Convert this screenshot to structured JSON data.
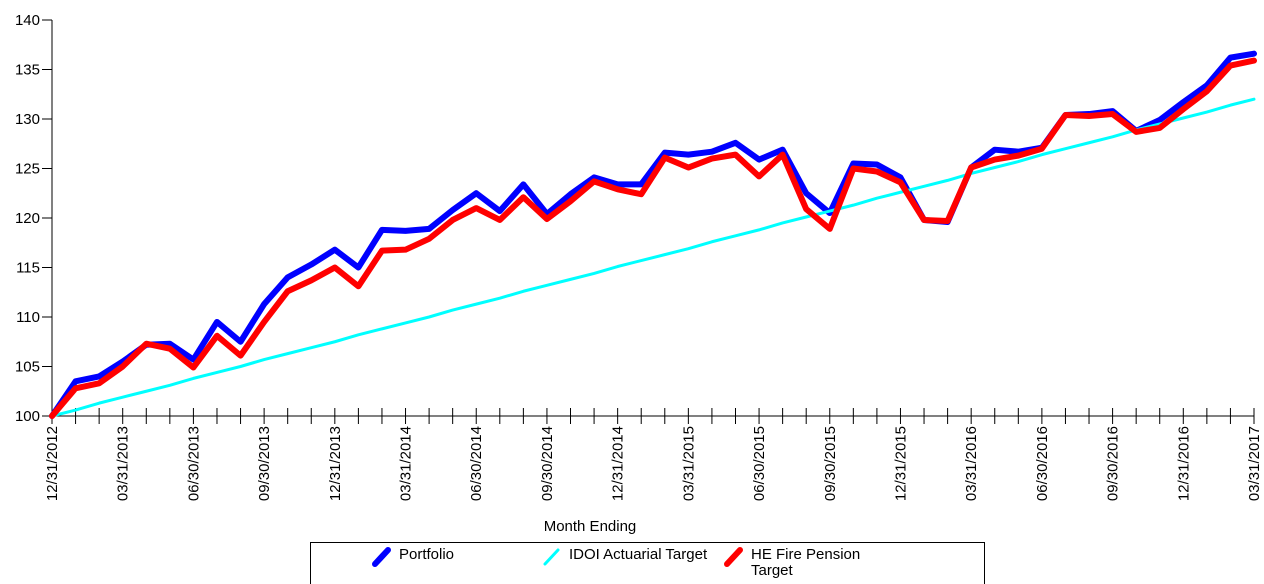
{
  "chart_data": {
    "type": "line",
    "x_label": "Month Ending",
    "categories": [
      "12/31/2012",
      null,
      null,
      "03/31/2013",
      null,
      null,
      "06/30/2013",
      null,
      null,
      "09/30/2013",
      null,
      null,
      "12/31/2013",
      null,
      null,
      "03/31/2014",
      null,
      null,
      "06/30/2014",
      null,
      null,
      "09/30/2014",
      null,
      null,
      "12/31/2014",
      null,
      null,
      "03/31/2015",
      null,
      null,
      "06/30/2015",
      null,
      null,
      "09/30/2015",
      null,
      null,
      "12/31/2015",
      null,
      null,
      "03/31/2016",
      null,
      null,
      "06/30/2016",
      null,
      null,
      "09/30/2016",
      null,
      null,
      "12/31/2016",
      null,
      null,
      "03/31/2017"
    ],
    "series": [
      {
        "name": "Portfolio",
        "color": "#0000ff",
        "values": [
          100,
          103.5,
          104,
          105.5,
          107.2,
          107.3,
          105.7,
          109.5,
          107.5,
          111.3,
          114,
          115.3,
          116.8,
          115,
          118.8,
          118.7,
          118.9,
          120.8,
          122.5,
          120.7,
          123.4,
          120.4,
          122.4,
          124.1,
          123.4,
          123.4,
          126.6,
          126.4,
          126.7,
          127.6,
          125.9,
          126.9,
          122.5,
          120.5,
          125.5,
          125.4,
          124.1,
          119.8,
          119.6,
          125.1,
          126.9,
          126.7,
          127.1,
          130.4,
          130.5,
          130.8,
          128.8,
          129.9,
          131.7,
          133.4,
          136.2,
          136.6
        ]
      },
      {
        "name": "IDOI Actuarial Target",
        "color": "#00ffff",
        "values": [
          100,
          100.6,
          101.3,
          101.9,
          102.5,
          103.1,
          103.8,
          104.4,
          105,
          105.7,
          106.3,
          106.9,
          107.5,
          108.2,
          108.8,
          109.4,
          110,
          110.7,
          111.3,
          111.9,
          112.6,
          113.2,
          113.8,
          114.4,
          115.1,
          115.7,
          116.3,
          116.9,
          117.6,
          118.2,
          118.8,
          119.5,
          120.1,
          120.7,
          121.3,
          122,
          122.6,
          123.2,
          123.8,
          124.5,
          125.1,
          125.7,
          126.4,
          127,
          127.6,
          128.2,
          128.9,
          129.5,
          130.1,
          130.7,
          131.4,
          132
        ]
      },
      {
        "name": "HE Fire Pension Target",
        "color": "#ff0000",
        "values": [
          100,
          102.8,
          103.3,
          105,
          107.3,
          106.8,
          104.9,
          108.1,
          106.1,
          109.5,
          112.6,
          113.7,
          115,
          113.1,
          116.7,
          116.8,
          117.9,
          119.8,
          121,
          119.8,
          122.1,
          119.9,
          121.7,
          123.7,
          122.9,
          122.4,
          126.1,
          125.1,
          126,
          126.4,
          124.2,
          126.4,
          120.9,
          118.9,
          125,
          124.7,
          123.6,
          119.8,
          119.7,
          125.1,
          125.9,
          126.3,
          127,
          130.4,
          130.3,
          130.5,
          128.7,
          129.1,
          131,
          132.8,
          135.4,
          135.9
        ]
      }
    ],
    "ylim": [
      100,
      140
    ],
    "yticks": [
      100,
      105,
      110,
      115,
      120,
      125,
      130,
      135,
      140
    ]
  }
}
